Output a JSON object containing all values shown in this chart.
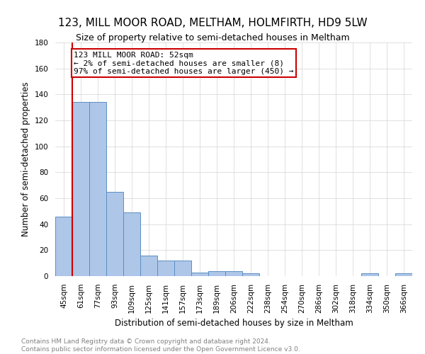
{
  "title": "123, MILL MOOR ROAD, MELTHAM, HOLMFIRTH, HD9 5LW",
  "subtitle": "Size of property relative to semi-detached houses in Meltham",
  "xlabel": "Distribution of semi-detached houses by size in Meltham",
  "ylabel": "Number of semi-detached properties",
  "categories": [
    "45sqm",
    "61sqm",
    "77sqm",
    "93sqm",
    "109sqm",
    "125sqm",
    "141sqm",
    "157sqm",
    "173sqm",
    "189sqm",
    "206sqm",
    "222sqm",
    "238sqm",
    "254sqm",
    "270sqm",
    "286sqm",
    "302sqm",
    "318sqm",
    "334sqm",
    "350sqm",
    "366sqm"
  ],
  "values": [
    46,
    134,
    134,
    65,
    49,
    16,
    12,
    12,
    3,
    4,
    4,
    2,
    0,
    0,
    0,
    0,
    0,
    0,
    2,
    0,
    2
  ],
  "bar_color": "#aec6e8",
  "bar_edge_color": "#5a8fc2",
  "highlight_color": "#cc0000",
  "annotation_title": "123 MILL MOOR ROAD: 52sqm",
  "annotation_line1": "← 2% of semi-detached houses are smaller (8)",
  "annotation_line2": "97% of semi-detached houses are larger (450) →",
  "ylim": [
    0,
    180
  ],
  "yticks": [
    0,
    20,
    40,
    60,
    80,
    100,
    120,
    140,
    160,
    180
  ],
  "footer1": "Contains HM Land Registry data © Crown copyright and database right 2024.",
  "footer2": "Contains public sector information licensed under the Open Government Licence v3.0.",
  "title_fontsize": 11,
  "subtitle_fontsize": 9,
  "axis_label_fontsize": 8.5,
  "tick_fontsize": 7.5,
  "annotation_fontsize": 8,
  "footer_fontsize": 6.5
}
